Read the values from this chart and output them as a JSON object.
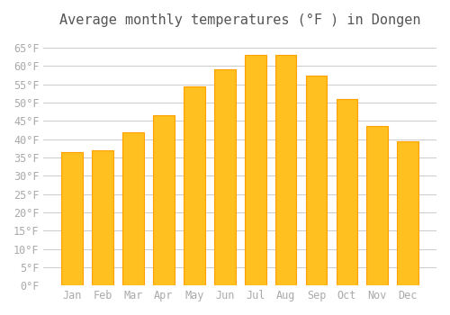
{
  "title": "Average monthly temperatures (°F ) in Dongen",
  "months": [
    "Jan",
    "Feb",
    "Mar",
    "Apr",
    "May",
    "Jun",
    "Jul",
    "Aug",
    "Sep",
    "Oct",
    "Nov",
    "Dec"
  ],
  "values": [
    36.5,
    37,
    42,
    46.5,
    54.5,
    59,
    63,
    63,
    57.5,
    51,
    43.5,
    39.5
  ],
  "bar_color": "#FFC020",
  "bar_edge_color": "#FFA000",
  "background_color": "#FFFFFF",
  "grid_color": "#CCCCCC",
  "text_color": "#AAAAAA",
  "title_color": "#555555",
  "ylim": [
    0,
    68
  ],
  "yticks": [
    0,
    5,
    10,
    15,
    20,
    25,
    30,
    35,
    40,
    45,
    50,
    55,
    60,
    65
  ],
  "ytick_labels": [
    "0°F",
    "5°F",
    "10°F",
    "15°F",
    "20°F",
    "25°F",
    "30°F",
    "35°F",
    "40°F",
    "45°F",
    "50°F",
    "55°F",
    "60°F",
    "65°F"
  ],
  "title_fontsize": 11,
  "tick_fontsize": 8.5,
  "figsize": [
    5.0,
    3.5
  ],
  "dpi": 100
}
